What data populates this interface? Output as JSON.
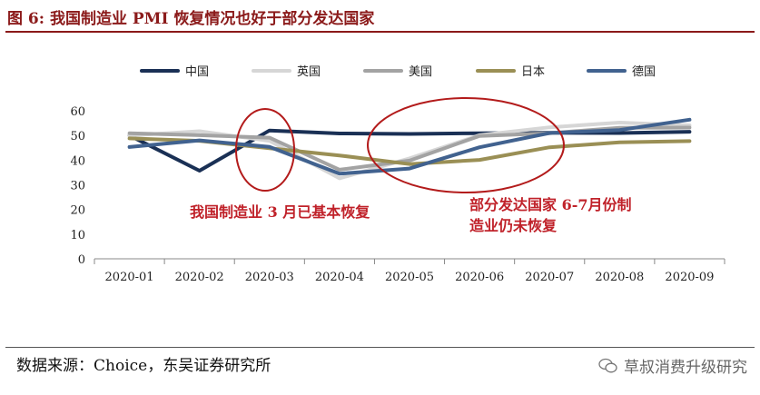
{
  "header": {
    "title": "图 6:  我国制造业 PMI 恢复情况也好于部分发达国家"
  },
  "footer": {
    "source": "数据来源：Choice，东吴证券研究所",
    "watermark": "草叔消费升级研究"
  },
  "colors": {
    "title": "#8b1a1a",
    "annotation": "#c0222a",
    "ellipse": "#b31b1b"
  },
  "chart_data": {
    "type": "line",
    "title": "",
    "xlabel": "",
    "ylabel": "",
    "categories": [
      "2020-01",
      "2020-02",
      "2020-03",
      "2020-04",
      "2020-05",
      "2020-06",
      "2020-07",
      "2020-08",
      "2020-09"
    ],
    "ylim": [
      0,
      60
    ],
    "yticks": [
      0,
      10,
      20,
      30,
      40,
      50,
      60
    ],
    "grid": false,
    "legend": "top",
    "series": [
      {
        "name": "中国",
        "color": "#1a3055",
        "values": [
          50.0,
          35.7,
          52.0,
          50.8,
          50.6,
          50.9,
          51.1,
          51.0,
          51.5
        ]
      },
      {
        "name": "英国",
        "color": "#d6d6d6",
        "values": [
          50.0,
          51.7,
          47.8,
          32.6,
          40.7,
          50.1,
          53.3,
          55.2,
          54.1
        ]
      },
      {
        "name": "美国",
        "color": "#a3a3a3",
        "values": [
          50.9,
          50.1,
          49.1,
          36.1,
          39.8,
          49.8,
          50.9,
          53.1,
          53.2
        ]
      },
      {
        "name": "日本",
        "color": "#9a8f55",
        "values": [
          48.8,
          47.8,
          44.8,
          41.9,
          38.4,
          40.1,
          45.2,
          47.2,
          47.7
        ]
      },
      {
        "name": "德国",
        "color": "#41628f",
        "values": [
          45.3,
          48.0,
          45.4,
          34.5,
          36.6,
          45.2,
          51.0,
          52.2,
          56.4
        ]
      }
    ],
    "annotations": [
      {
        "text": "我国制造业 3 月已基本恢复"
      },
      {
        "text": "部分发达国家 6-7月份制"
      },
      {
        "text": "造业仍未恢复"
      }
    ]
  }
}
